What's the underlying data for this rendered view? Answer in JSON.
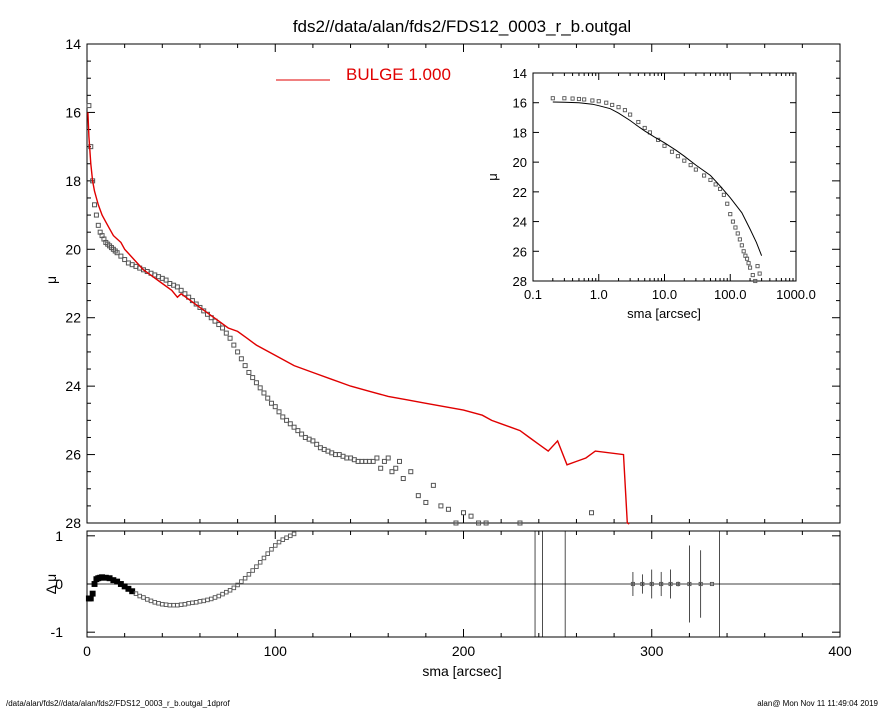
{
  "title": "fds2//data/alan/fds2/FDS12_0003_r_b.outgal",
  "footer_left": "/data/alan/fds2//data/alan/fds2/FDS12_0003_r_b.outgal_1dprof",
  "footer_right": "alan@  Mon Nov 11 11:49:04 2019",
  "colors": {
    "model": "#e00000",
    "data": "#555555",
    "axis": "#000000"
  },
  "chart_data": [
    {
      "type": "scatter",
      "panel": "main",
      "xlabel": "",
      "ylabel": "μ",
      "xlim": [
        0,
        400
      ],
      "ylim": [
        28,
        14
      ],
      "yticks": [
        14,
        16,
        18,
        20,
        22,
        24,
        26,
        28
      ],
      "legend": {
        "label": "BULGE  1.000",
        "placement": "top-center"
      },
      "series": [
        {
          "kind": "model-line",
          "name": "BULGE  1.000",
          "x": [
            0.5,
            1,
            2,
            3,
            4,
            5,
            6,
            8,
            10,
            12,
            14,
            16,
            18,
            20,
            25,
            30,
            35,
            40,
            45,
            48,
            50,
            55,
            60,
            65,
            70,
            75,
            80,
            85,
            90,
            100,
            110,
            120,
            130,
            140,
            150,
            160,
            170,
            180,
            190,
            200,
            210,
            215,
            220,
            225,
            230,
            235,
            240,
            245,
            250,
            255,
            260,
            265,
            270,
            285,
            286,
            287,
            288
          ],
          "y": [
            16.0,
            16.7,
            17.5,
            18.0,
            18.3,
            18.5,
            18.7,
            19.0,
            19.2,
            19.4,
            19.6,
            19.7,
            19.8,
            20.0,
            20.3,
            20.6,
            20.8,
            21.0,
            21.2,
            21.4,
            21.3,
            21.5,
            21.7,
            21.9,
            22.1,
            22.3,
            22.4,
            22.6,
            22.8,
            23.1,
            23.4,
            23.6,
            23.8,
            24.0,
            24.15,
            24.3,
            24.4,
            24.5,
            24.6,
            24.7,
            24.85,
            25.0,
            25.1,
            25.2,
            25.3,
            25.5,
            25.7,
            25.9,
            25.6,
            26.3,
            26.2,
            26.1,
            25.9,
            26.0,
            27.0,
            28.0,
            28.3
          ]
        },
        {
          "kind": "data-points",
          "x": [
            1,
            2,
            3,
            4,
            5,
            6,
            7,
            8,
            9,
            10,
            11,
            12,
            13,
            14,
            15,
            16,
            18,
            20,
            22,
            24,
            26,
            28,
            30,
            32,
            34,
            36,
            38,
            40,
            42,
            44,
            46,
            48,
            50,
            52,
            54,
            56,
            58,
            60,
            62,
            64,
            66,
            68,
            70,
            72,
            74,
            76,
            78,
            80,
            82,
            84,
            86,
            88,
            90,
            92,
            94,
            96,
            98,
            100,
            102,
            104,
            106,
            108,
            110,
            112,
            114,
            116,
            118,
            120,
            122,
            124,
            126,
            128,
            130,
            132,
            134,
            136,
            138,
            140,
            142,
            144,
            146,
            148,
            150,
            152,
            154,
            156,
            158,
            160,
            162,
            164,
            166,
            168,
            172,
            176,
            180,
            184,
            188,
            192,
            196,
            200,
            204,
            208,
            212,
            230,
            268
          ],
          "y": [
            15.8,
            17.0,
            18.0,
            18.7,
            19.0,
            19.3,
            19.5,
            19.6,
            19.7,
            19.8,
            19.85,
            19.9,
            19.95,
            20.0,
            20.05,
            20.1,
            20.2,
            20.3,
            20.4,
            20.45,
            20.5,
            20.55,
            20.6,
            20.65,
            20.7,
            20.75,
            20.8,
            20.85,
            20.9,
            21.0,
            21.05,
            21.1,
            21.2,
            21.3,
            21.4,
            21.5,
            21.6,
            21.7,
            21.8,
            21.9,
            22.0,
            22.1,
            22.2,
            22.3,
            22.45,
            22.6,
            22.8,
            23.0,
            23.2,
            23.4,
            23.6,
            23.75,
            23.9,
            24.05,
            24.2,
            24.35,
            24.5,
            24.6,
            24.75,
            24.9,
            25.0,
            25.1,
            25.2,
            25.3,
            25.4,
            25.5,
            25.55,
            25.6,
            25.7,
            25.8,
            25.85,
            25.9,
            25.95,
            26.0,
            26.0,
            26.05,
            26.1,
            26.1,
            26.15,
            26.2,
            26.2,
            26.2,
            26.2,
            26.2,
            26.1,
            26.4,
            26.2,
            26.1,
            26.5,
            26.4,
            26.2,
            26.7,
            26.5,
            27.2,
            27.4,
            26.9,
            27.5,
            27.6,
            28.0,
            27.7,
            27.8,
            28.0,
            28.0,
            28.0,
            27.7
          ]
        }
      ]
    },
    {
      "type": "scatter",
      "panel": "inset",
      "xlabel": "sma [arcsec]",
      "ylabel": "μ",
      "xscale": "log",
      "xlim": [
        0.1,
        1000
      ],
      "ylim": [
        28,
        14
      ],
      "xticks": [
        "0.1",
        "1.0",
        "10.0",
        "100.0",
        "1000.0"
      ],
      "yticks": [
        14,
        16,
        18,
        20,
        22,
        24,
        26,
        28
      ],
      "series": [
        {
          "kind": "model-line",
          "x": [
            0.2,
            0.3,
            0.5,
            0.8,
            1,
            1.5,
            2,
            3,
            4,
            5,
            7,
            10,
            15,
            20,
            30,
            50,
            70,
            100,
            150,
            200,
            250,
            300
          ],
          "y": [
            15.95,
            15.97,
            16.0,
            16.1,
            16.2,
            16.4,
            16.7,
            17.2,
            17.6,
            17.9,
            18.3,
            18.7,
            19.2,
            19.6,
            20.2,
            20.9,
            21.6,
            22.4,
            23.4,
            24.5,
            25.4,
            26.3
          ]
        },
        {
          "kind": "data-points",
          "x": [
            0.2,
            0.3,
            0.4,
            0.5,
            0.6,
            0.8,
            1,
            1.3,
            1.6,
            2,
            2.5,
            3,
            4,
            5,
            6,
            8,
            10,
            13,
            16,
            20,
            25,
            30,
            40,
            50,
            60,
            70,
            80,
            90,
            100,
            110,
            120,
            130,
            140,
            150,
            160,
            170,
            180,
            190,
            200,
            220,
            240,
            260,
            280
          ],
          "y": [
            15.7,
            15.7,
            15.72,
            15.75,
            15.78,
            15.85,
            15.9,
            16.0,
            16.15,
            16.3,
            16.5,
            16.8,
            17.3,
            17.7,
            18.0,
            18.5,
            18.9,
            19.3,
            19.6,
            19.9,
            20.2,
            20.5,
            20.9,
            21.2,
            21.5,
            21.8,
            22.2,
            22.8,
            23.5,
            24.0,
            24.4,
            24.8,
            25.2,
            25.6,
            26.0,
            26.3,
            26.5,
            26.8,
            27.1,
            27.6,
            28.0,
            27.0,
            27.5
          ]
        }
      ]
    },
    {
      "type": "scatter",
      "panel": "residual",
      "xlabel": "sma [arcsec]",
      "ylabel": "Δ μ",
      "xlim": [
        0,
        400
      ],
      "ylim": [
        -1.1,
        1.1
      ],
      "xticks": [
        0,
        100,
        200,
        300,
        400
      ],
      "yticks": [
        -1,
        0,
        1
      ],
      "series": [
        {
          "kind": "data-points",
          "x": [
            1,
            2,
            3,
            4,
            5,
            6,
            7,
            8,
            10,
            12,
            14,
            16,
            18,
            20,
            22,
            24,
            26,
            28,
            30,
            32,
            34,
            36,
            38,
            40,
            42,
            44,
            46,
            48,
            50,
            52,
            54,
            56,
            58,
            60,
            62,
            64,
            66,
            68,
            70,
            72,
            74,
            76,
            78,
            80,
            82,
            84,
            86,
            88,
            90,
            92,
            94,
            96,
            98,
            100,
            102,
            104,
            106,
            108,
            110
          ],
          "y": [
            -0.3,
            -0.3,
            -0.2,
            0.0,
            0.1,
            0.12,
            0.13,
            0.14,
            0.13,
            0.12,
            0.08,
            0.05,
            0.0,
            -0.05,
            -0.1,
            -0.15,
            -0.2,
            -0.25,
            -0.28,
            -0.32,
            -0.35,
            -0.38,
            -0.4,
            -0.42,
            -0.43,
            -0.44,
            -0.44,
            -0.44,
            -0.43,
            -0.42,
            -0.4,
            -0.39,
            -0.38,
            -0.36,
            -0.35,
            -0.33,
            -0.31,
            -0.28,
            -0.25,
            -0.21,
            -0.17,
            -0.13,
            -0.08,
            -0.02,
            0.05,
            0.12,
            0.2,
            0.28,
            0.36,
            0.45,
            0.54,
            0.63,
            0.72,
            0.8,
            0.87,
            0.92,
            0.96,
            1.0,
            1.04
          ]
        },
        {
          "kind": "error-bars",
          "x": [
            290,
            295,
            300,
            305,
            310,
            314,
            320,
            326,
            332
          ],
          "y": [
            0,
            0,
            0,
            0,
            0,
            0,
            0,
            0,
            0
          ],
          "err": [
            0.25,
            0.2,
            0.3,
            0.25,
            0.3,
            0.05,
            0.8,
            0.7,
            0.0
          ]
        },
        {
          "kind": "vertical-lines",
          "x": [
            238,
            242,
            254,
            336
          ]
        }
      ]
    }
  ]
}
